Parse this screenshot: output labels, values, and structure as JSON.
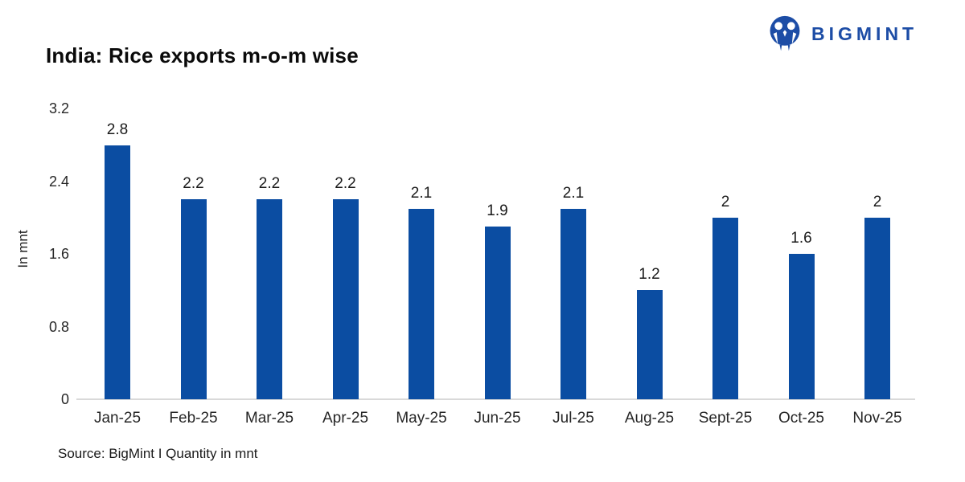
{
  "header": {
    "title": "India: Rice exports m-o-m wise"
  },
  "logo": {
    "text": "BIGMINT",
    "color": "#1d4da6",
    "icon": "bigmint-people-icon"
  },
  "chart_data": {
    "type": "bar",
    "title": "India: Rice exports m-o-m wise",
    "categories": [
      "Jan-25",
      "Feb-25",
      "Mar-25",
      "Apr-25",
      "May-25",
      "Jun-25",
      "Jul-25",
      "Aug-25",
      "Sept-25",
      "Oct-25",
      "Nov-25"
    ],
    "values": [
      2.8,
      2.2,
      2.2,
      2.2,
      2.1,
      1.9,
      2.1,
      1.2,
      2,
      1.6,
      2
    ],
    "xlabel": "",
    "ylabel": "In mnt",
    "yticks": [
      0,
      0.8,
      1.6,
      2.4,
      3.2
    ],
    "ylim": [
      0,
      3.2
    ],
    "grid": false,
    "legend": "none",
    "data_labels": true,
    "bar_color": "#0b4da2",
    "axis_line_color": "#d9d9d9"
  },
  "footer": {
    "source": "Source: BigMint I Quantity in mnt"
  }
}
